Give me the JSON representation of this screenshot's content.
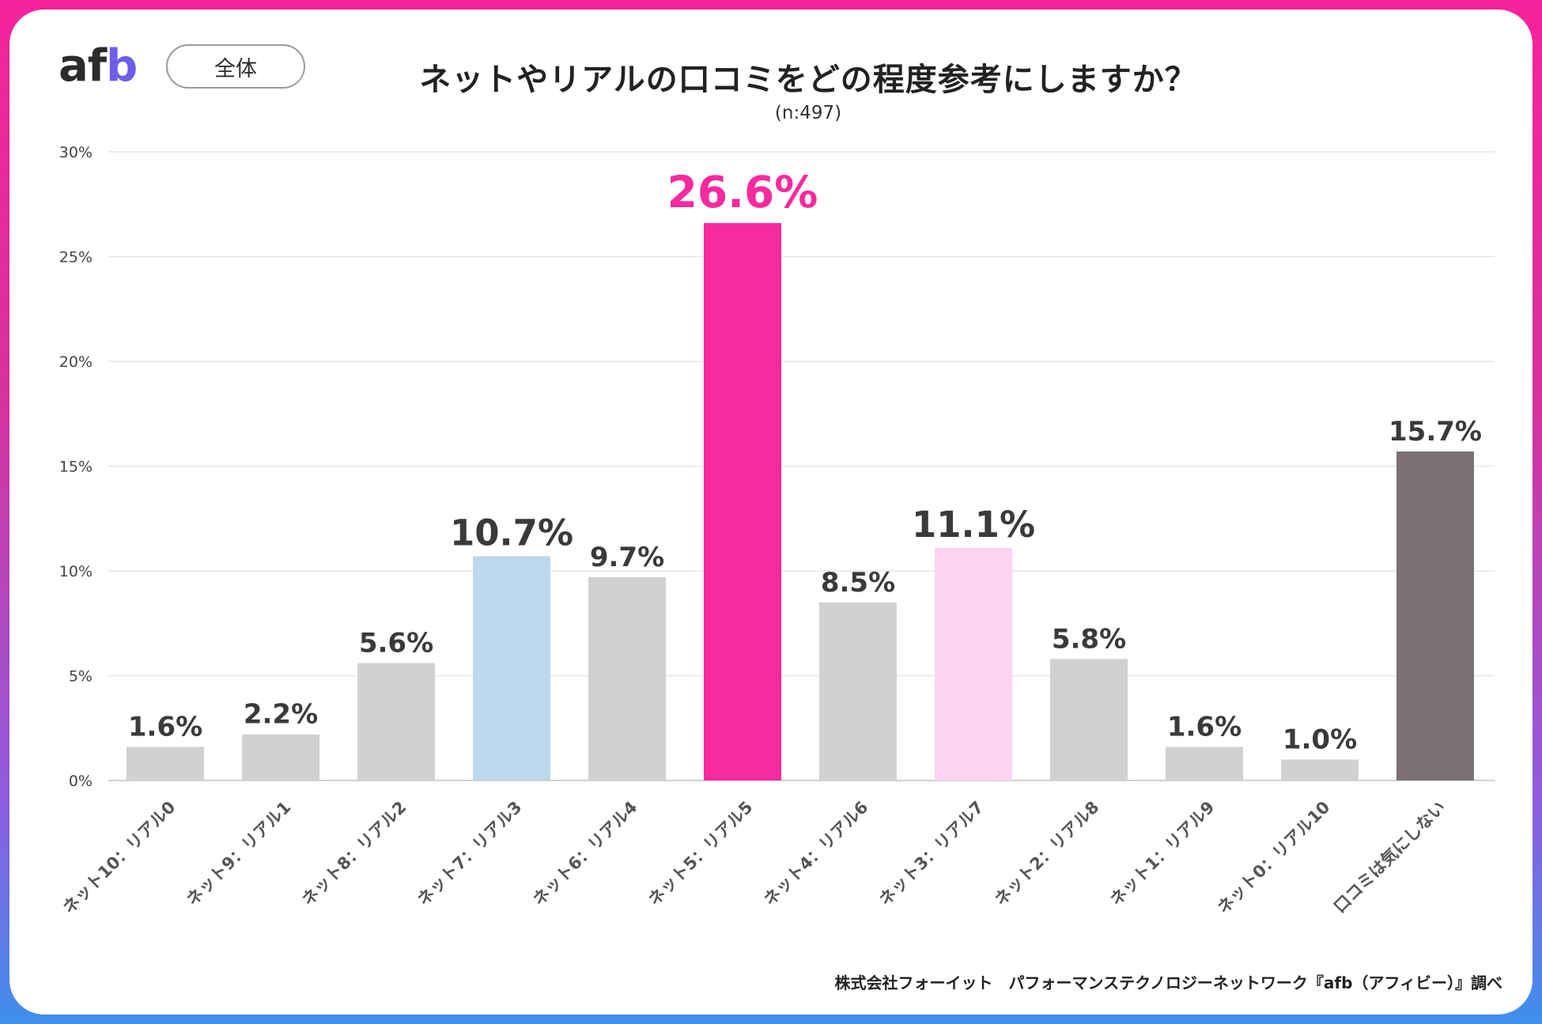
{
  "header": {
    "logo_text": "afb",
    "scope_label": "全体"
  },
  "chart_data": {
    "type": "bar",
    "title": "ネットやリアルの口コミをどの程度参考にしますか？",
    "subtitle": "(n:497)",
    "categories": [
      "ネット10：リアル0",
      "ネット9：リアル1",
      "ネット8：リアル2",
      "ネット7：リアル3",
      "ネット6：リアル4",
      "ネット5：リアル5",
      "ネット4：リアル6",
      "ネット3：リアル7",
      "ネット2：リアル8",
      "ネット1：リアル9",
      "ネット0：リアル10",
      "口コミは気にしない"
    ],
    "values": [
      1.6,
      2.2,
      5.6,
      10.7,
      9.7,
      26.6,
      8.5,
      11.1,
      5.8,
      1.6,
      1.0,
      15.7
    ],
    "value_labels": [
      "1.6%",
      "2.2%",
      "5.6%",
      "10.7%",
      "9.7%",
      "26.6%",
      "8.5%",
      "11.1%",
      "5.8%",
      "1.6%",
      "1.0%",
      "15.7%"
    ],
    "bar_colors": [
      "#d3d0d0",
      "#d3d0d0",
      "#d3d0d0",
      "#bdd8ec",
      "#d3d0d0",
      "#f72a9f",
      "#d3d0d0",
      "#fcd3f0",
      "#d3d0d0",
      "#d3d0d0",
      "#d3d0d0",
      "#7a7272"
    ],
    "label_emphasis": [
      "normal",
      "normal",
      "normal",
      "large",
      "normal",
      "highlight",
      "normal",
      "large",
      "normal",
      "normal",
      "normal",
      "normal"
    ],
    "label_colors": {
      "normal": "#3a3a3a",
      "large": "#3a3a3a",
      "highlight": "#f72a9f"
    },
    "yticks": [
      0,
      5,
      10,
      15,
      20,
      25,
      30
    ],
    "ytick_labels": [
      "0%",
      "5%",
      "10%",
      "15%",
      "20%",
      "25%",
      "30%"
    ],
    "ylim": [
      0,
      30
    ],
    "xlabel": "",
    "ylabel": "",
    "grid": true,
    "legend": "none"
  },
  "footer": {
    "source": "株式会社フォーイット　パフォーマンステクノロジーネットワーク『afb（アフィビー）』調べ"
  }
}
